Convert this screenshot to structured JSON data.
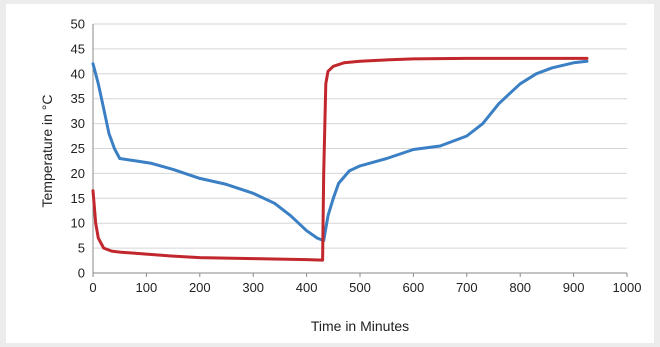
{
  "chart_data": {
    "type": "line",
    "title": "",
    "xlabel": "Time in Minutes",
    "ylabel": "Temperature in °C",
    "xlim": [
      0,
      1000
    ],
    "ylim": [
      0,
      50
    ],
    "xticks": [
      0,
      100,
      200,
      300,
      400,
      500,
      600,
      700,
      800,
      900,
      1000
    ],
    "yticks": [
      0,
      5,
      10,
      15,
      20,
      25,
      30,
      35,
      40,
      45,
      50
    ],
    "grid": true,
    "legend": "none",
    "series": [
      {
        "color": "#3b7fc4",
        "x": [
          0,
          10,
          20,
          30,
          40,
          50,
          80,
          110,
          150,
          200,
          250,
          300,
          340,
          370,
          400,
          420,
          432,
          440,
          450,
          460,
          480,
          500,
          550,
          600,
          650,
          700,
          730,
          760,
          780,
          800,
          830,
          860,
          900,
          925
        ],
        "y": [
          42,
          38,
          33,
          28,
          25,
          23,
          22.5,
          22,
          20.8,
          19,
          17.8,
          16,
          14,
          11.5,
          8.5,
          7,
          6.5,
          11.5,
          15,
          18,
          20.5,
          21.5,
          23,
          24.8,
          25.5,
          27.5,
          30,
          34,
          36,
          38,
          40,
          41.2,
          42.2,
          42.5
        ]
      },
      {
        "color": "#c1272d",
        "x": [
          0,
          5,
          10,
          20,
          35,
          50,
          100,
          150,
          200,
          300,
          400,
          430,
          432,
          436,
          440,
          450,
          470,
          500,
          550,
          600,
          700,
          800,
          900,
          925
        ],
        "y": [
          16.5,
          10,
          7,
          5,
          4.4,
          4.2,
          3.8,
          3.4,
          3.1,
          2.9,
          2.7,
          2.6,
          20,
          38,
          40.5,
          41.5,
          42.2,
          42.5,
          42.8,
          43,
          43.1,
          43.1,
          43.1,
          43.1
        ]
      }
    ]
  }
}
